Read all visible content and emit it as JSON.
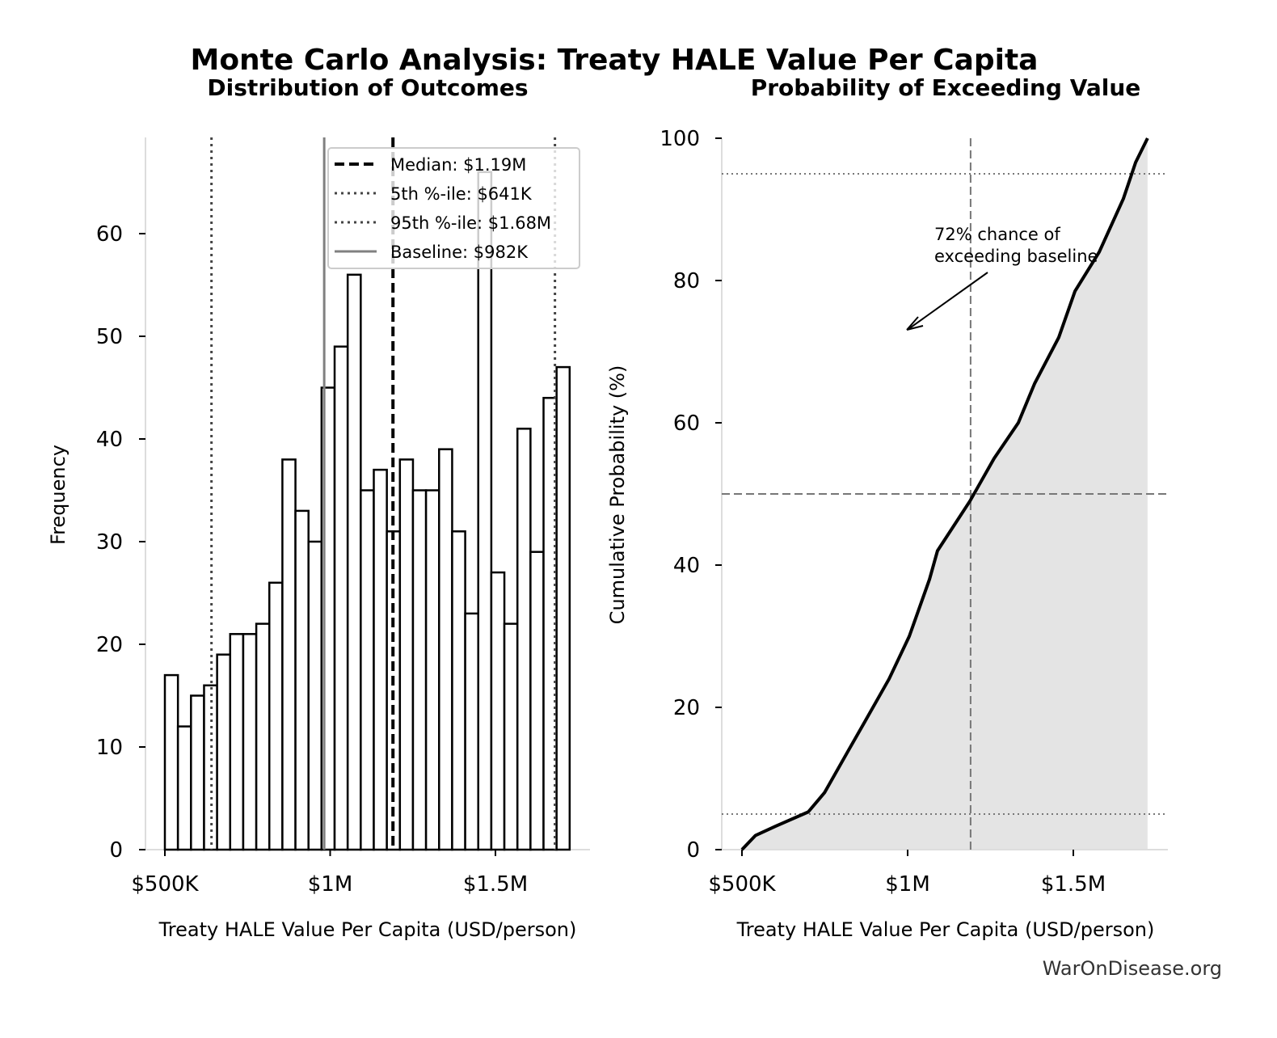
{
  "title": "Monte Carlo Analysis: Treaty HALE Value Per Capita",
  "watermark": "WarOnDisease.org",
  "chart_data": [
    {
      "type": "bar",
      "title": "Distribution of Outcomes",
      "xlabel": "Treaty HALE Value Per Capita (USD/person)",
      "ylabel": "Frequency",
      "x_unit": "thousand USD",
      "xlim": [
        440,
        1765
      ],
      "ylim": [
        0,
        69.3
      ],
      "bin_start": 500,
      "bin_width": 39.5,
      "values": [
        17,
        12,
        15,
        16,
        19,
        21,
        21,
        22,
        26,
        38,
        33,
        30,
        45,
        49,
        56,
        35,
        37,
        31,
        38,
        35,
        35,
        39,
        31,
        23,
        66,
        27,
        22,
        41,
        29,
        44,
        47
      ],
      "xticks": [
        {
          "value": 500,
          "label": "$500K"
        },
        {
          "value": 1000,
          "label": "$1M"
        },
        {
          "value": 1500,
          "label": "$1.5M"
        }
      ],
      "yticks": [
        0,
        10,
        20,
        30,
        40,
        50,
        60
      ],
      "grid": false,
      "bar_fill": "#ffffff",
      "bar_edge": "#000000",
      "reference_lines": [
        {
          "name": "Median: $1.19M",
          "value": 1190,
          "style": "dashed",
          "color": "#000000"
        },
        {
          "name": "5th %-ile: $641K",
          "value": 641,
          "style": "dotted",
          "color": "#444444"
        },
        {
          "name": "95th %-ile: $1.68M",
          "value": 1680,
          "style": "dotted",
          "color": "#444444"
        },
        {
          "name": "Baseline: $982K",
          "value": 982,
          "style": "solid",
          "color": "#808080"
        }
      ],
      "legend_position": "top-right"
    },
    {
      "type": "area",
      "title": "Probability of Exceeding Value",
      "xlabel": "Treaty HALE Value Per Capita (USD/person)",
      "ylabel": "Cumulative Probability (%)",
      "x_unit": "thousand USD",
      "xlim": [
        440,
        1765
      ],
      "ylim": [
        0,
        100
      ],
      "x": [
        500,
        541,
        602,
        700,
        749,
        822,
        871,
        944,
        1005,
        1066,
        1090,
        1188,
        1261,
        1334,
        1383,
        1456,
        1505,
        1578,
        1651,
        1688,
        1724
      ],
      "y": [
        0,
        2,
        3.3,
        5.3,
        8,
        14,
        18,
        24,
        30,
        38,
        42,
        49,
        55,
        60,
        65.5,
        72,
        78.5,
        84,
        91.5,
        96.6,
        100
      ],
      "xticks": [
        {
          "value": 500,
          "label": "$500K"
        },
        {
          "value": 1000,
          "label": "$1M"
        },
        {
          "value": 1500,
          "label": "$1.5M"
        }
      ],
      "yticks": [
        0,
        20,
        40,
        60,
        80,
        100
      ],
      "fill_color": "#e4e4e4",
      "line_color": "#000000",
      "hlines": [
        {
          "value": 5,
          "style": "dotted"
        },
        {
          "value": 50,
          "style": "dashed"
        },
        {
          "value": 95,
          "style": "dotted"
        }
      ],
      "vline": {
        "value": 1190,
        "style": "dashed"
      },
      "annotation": {
        "text_line1": "72% chance of",
        "text_line2": "exceeding baseline"
      }
    }
  ]
}
